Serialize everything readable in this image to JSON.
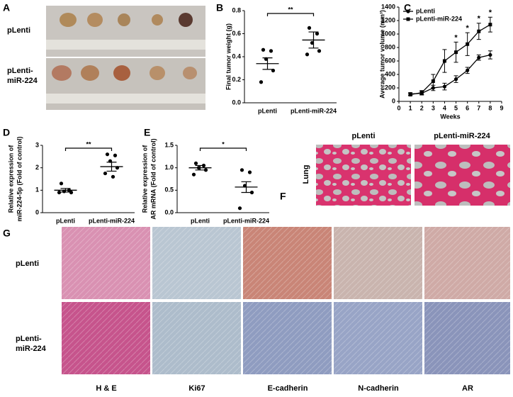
{
  "chart_data": [
    {
      "type": "dot",
      "panel": "B",
      "ylabel": "Final tumor weight (g)",
      "categories": [
        "pLenti",
        "pLenti-miR-224"
      ],
      "values": [
        [
          0.46,
          0.45,
          0.38,
          0.28,
          0.18
        ],
        [
          0.65,
          0.6,
          0.52,
          0.45,
          0.42
        ]
      ],
      "means": [
        0.34,
        0.545
      ],
      "sems": [
        0.05,
        0.07
      ],
      "ylim": [
        0,
        0.8
      ],
      "yticks": [
        {
          "value": 0,
          "label": "0.0"
        },
        0.2,
        0.4,
        0.6,
        0.8
      ],
      "significance": "**",
      "color": "#000000"
    },
    {
      "type": "line",
      "panel": "C",
      "ylabel": "Average tumor volume (mm³)",
      "xlabel": "Weeks",
      "x": [
        1,
        2,
        3,
        4,
        5,
        6,
        7,
        8
      ],
      "series": [
        {
          "name": "pLenti",
          "color": "#000000",
          "marker": "circle",
          "values": [
            110,
            120,
            200,
            220,
            330,
            460,
            650,
            690
          ],
          "errors": [
            20,
            25,
            40,
            50,
            50,
            45,
            40,
            60
          ]
        },
        {
          "name": "pLenti-miR-224",
          "color": "#000000",
          "marker": "square",
          "values": [
            100,
            130,
            300,
            600,
            730,
            850,
            1040,
            1140
          ],
          "errors": [
            15,
            30,
            100,
            170,
            150,
            170,
            120,
            110
          ]
        }
      ],
      "xlim": [
        0,
        9
      ],
      "xticks": [
        0,
        1,
        2,
        3,
        4,
        5,
        6,
        7,
        8,
        9
      ],
      "ylim": [
        0,
        1400
      ],
      "yticks": [
        0,
        200,
        400,
        600,
        800,
        1000,
        1200,
        1400
      ],
      "annotations": [
        {
          "x": 5,
          "text": "*"
        },
        {
          "x": 6,
          "text": "*"
        },
        {
          "x": 7,
          "text": "*"
        },
        {
          "x": 8,
          "text": "*"
        }
      ]
    },
    {
      "type": "dot",
      "panel": "D",
      "ylabel": [
        "Relative expression of",
        "miR-224-5p (Fold of control)"
      ],
      "categories": [
        "pLenti",
        "pLenti-miR-224"
      ],
      "values": [
        [
          1.3,
          1.0,
          0.95,
          0.9,
          0.9
        ],
        [
          2.6,
          2.55,
          2.3,
          2.0,
          1.75,
          1.6
        ]
      ],
      "means": [
        1.0,
        2.05
      ],
      "sems": [
        0.08,
        0.2
      ],
      "ylim": [
        0,
        3
      ],
      "yticks": [
        0,
        1,
        2,
        3
      ],
      "significance": "**",
      "color": "#000000"
    },
    {
      "type": "dot",
      "panel": "E",
      "ylabel": [
        "Relative expression of",
        "AR mRNA (Fold of control)"
      ],
      "categories": [
        "pLenti",
        "pLenti-miR-224"
      ],
      "values": [
        [
          1.1,
          1.05,
          1.0,
          0.95,
          0.85
        ],
        [
          0.95,
          0.9,
          0.6,
          0.45,
          0.1
        ]
      ],
      "means": [
        1.0,
        0.57
      ],
      "sems": [
        0.05,
        0.12
      ],
      "ylim": [
        0,
        1.5
      ],
      "yticks": [
        {
          "value": 0,
          "label": "0.0"
        },
        0.5,
        {
          "value": 1,
          "label": "1.0"
        },
        1.5
      ],
      "significance": "*",
      "color": "#000000"
    }
  ],
  "panel_a": {
    "panel": "A",
    "rows": [
      [
        "pLenti"
      ],
      [
        "pLenti-",
        "miR-224"
      ]
    ]
  },
  "panel_f": {
    "panel": "F",
    "columns": [
      "pLenti",
      "pLenti-miR-224"
    ],
    "row": "Lung"
  },
  "panel_g": {
    "panel": "G",
    "rows": [
      [
        "pLenti"
      ],
      [
        "pLenti-",
        "miR-224"
      ]
    ],
    "columns": [
      "H & E",
      "Ki67",
      "E-cadherin",
      "N-cadherin",
      "AR"
    ]
  }
}
